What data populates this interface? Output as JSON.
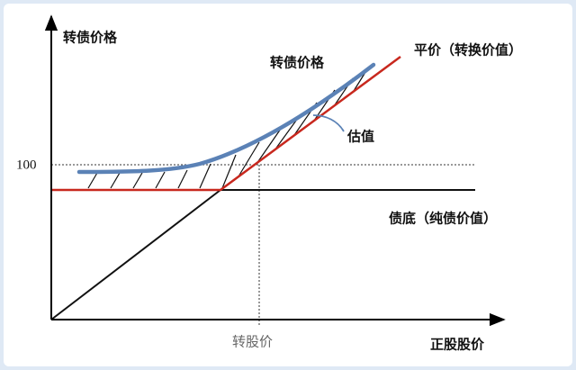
{
  "y_axis_label": "转债价格",
  "curve_label": "转债价格",
  "parity_label": "平价（转换价值）",
  "valuation_label": "估值",
  "tick_100": "100",
  "bond_floor_label": "债底（纯债价值）",
  "conversion_price_label": "转股价",
  "x_axis_label": "正股股价"
}
